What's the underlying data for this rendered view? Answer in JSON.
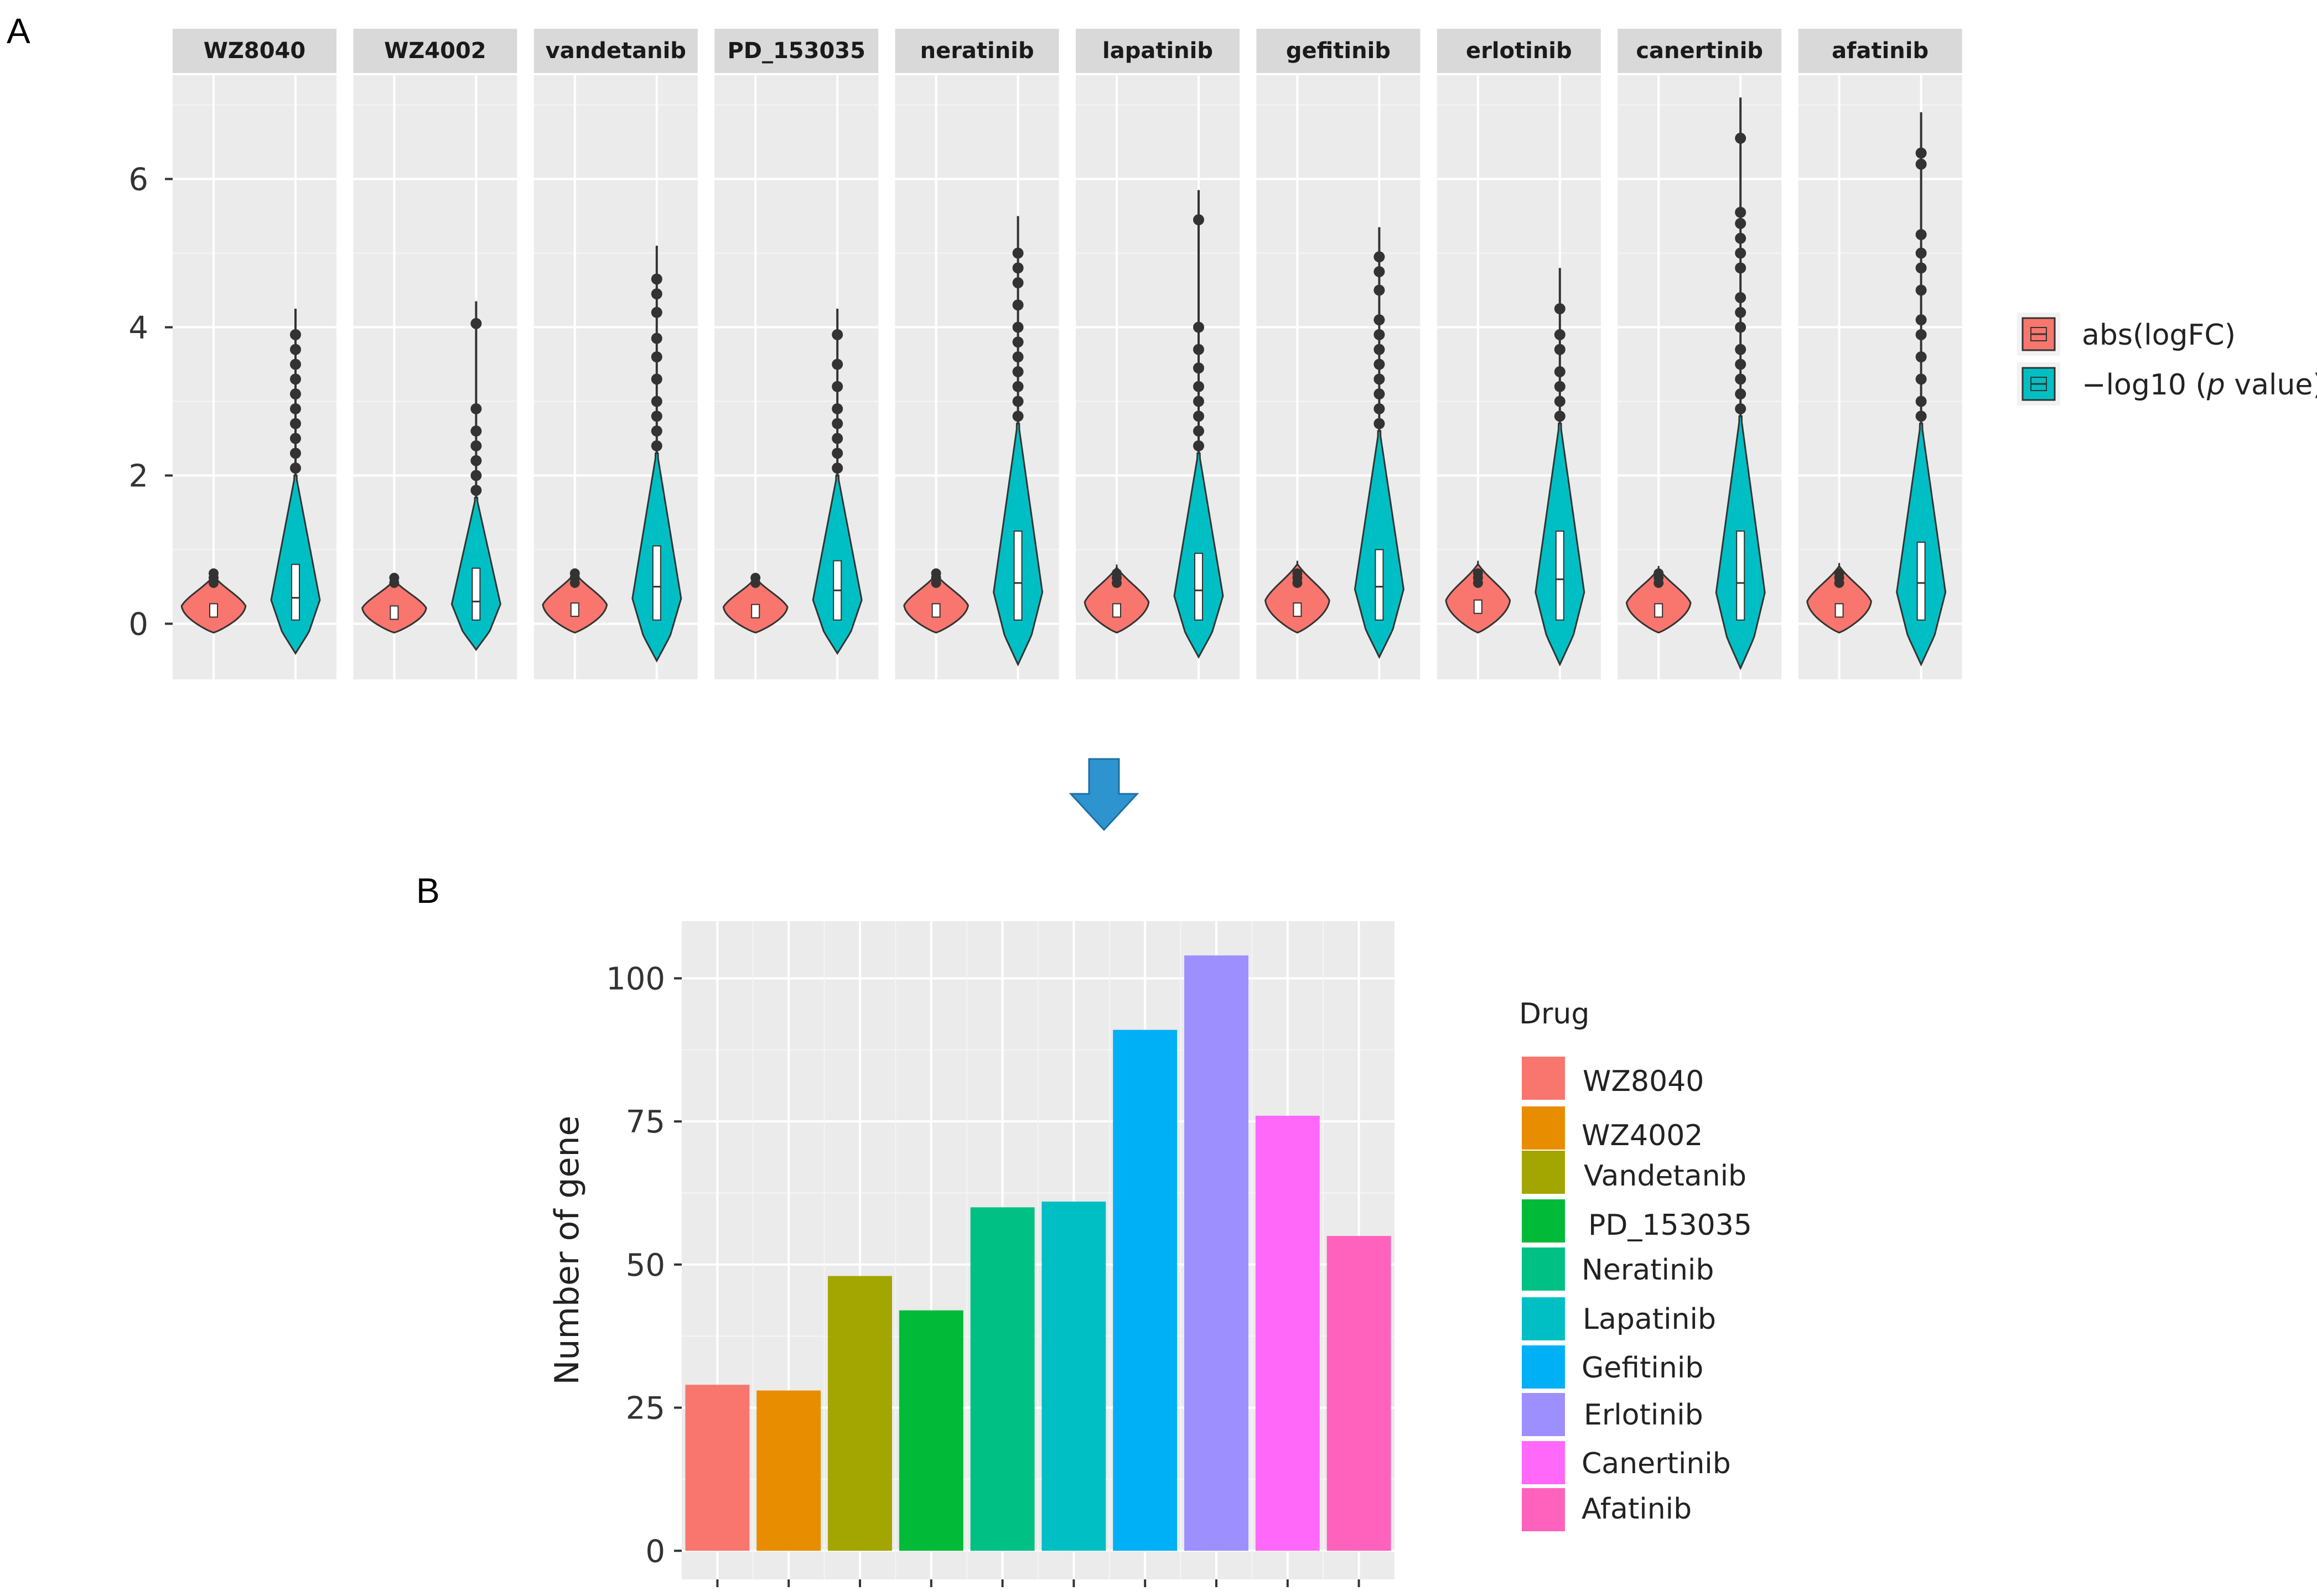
{
  "chart_data": [
    {
      "panel": "A",
      "type": "violin",
      "ylim": [
        -0.75,
        7.4
      ],
      "yticks": [
        0,
        2,
        4,
        6
      ],
      "ytick_labels": [
        "0",
        "2",
        "4",
        "6"
      ],
      "legend": {
        "position": "right",
        "entries": [
          {
            "label": "abs(logFC)",
            "color": "#F8766D"
          },
          {
            "label_prefix": "−log10 (",
            "label_italic": "p",
            "label_suffix": " value)",
            "color": "#00BFC4"
          }
        ]
      },
      "facets": [
        {
          "name": "WZ8040",
          "abs_max": 0.68,
          "abs_med": 0.15,
          "p_min": -0.4,
          "p_max": 4.25,
          "p_med": 0.35,
          "p_q3": 0.8,
          "p_tail": 2.0,
          "p_outliers": [
            2.1,
            2.3,
            2.5,
            2.7,
            2.9,
            3.1,
            3.3,
            3.5,
            3.7,
            3.9
          ]
        },
        {
          "name": "WZ4002",
          "abs_max": 0.62,
          "abs_med": 0.12,
          "p_min": -0.35,
          "p_max": 4.35,
          "p_med": 0.3,
          "p_q3": 0.75,
          "p_tail": 1.7,
          "p_outliers": [
            1.8,
            2.0,
            2.2,
            2.4,
            2.6,
            2.9,
            4.05
          ]
        },
        {
          "name": "vandetanib",
          "abs_max": 0.72,
          "abs_med": 0.16,
          "p_min": -0.5,
          "p_max": 5.1,
          "p_med": 0.5,
          "p_q3": 1.05,
          "p_tail": 2.3,
          "p_outliers": [
            2.4,
            2.6,
            2.8,
            3.0,
            3.3,
            3.6,
            3.85,
            4.2,
            4.45,
            4.65
          ]
        },
        {
          "name": "PD_153035",
          "abs_max": 0.65,
          "abs_med": 0.14,
          "p_min": -0.4,
          "p_max": 4.25,
          "p_med": 0.45,
          "p_q3": 0.85,
          "p_tail": 2.0,
          "p_outliers": [
            2.1,
            2.3,
            2.5,
            2.7,
            2.9,
            3.2,
            3.5,
            3.9
          ]
        },
        {
          "name": "neratinib",
          "abs_max": 0.7,
          "abs_med": 0.15,
          "p_min": -0.55,
          "p_max": 5.5,
          "p_med": 0.55,
          "p_q3": 1.25,
          "p_tail": 2.7,
          "p_outliers": [
            2.8,
            3.0,
            3.2,
            3.4,
            3.6,
            3.8,
            4.0,
            4.3,
            4.6,
            4.8,
            5.0
          ]
        },
        {
          "name": "lapatinib",
          "abs_max": 0.8,
          "abs_med": 0.15,
          "p_min": -0.45,
          "p_max": 5.85,
          "p_med": 0.45,
          "p_q3": 0.95,
          "p_tail": 2.3,
          "p_outliers": [
            2.4,
            2.6,
            2.8,
            3.0,
            3.2,
            3.45,
            3.7,
            4.0,
            5.45
          ]
        },
        {
          "name": "gefitinib",
          "abs_max": 0.85,
          "abs_med": 0.16,
          "p_min": -0.45,
          "p_max": 5.35,
          "p_med": 0.5,
          "p_q3": 1.0,
          "p_tail": 2.6,
          "p_outliers": [
            2.7,
            2.9,
            3.1,
            3.3,
            3.5,
            3.7,
            3.9,
            4.1,
            4.5,
            4.75,
            4.95
          ]
        },
        {
          "name": "erlotinib",
          "abs_max": 0.85,
          "abs_med": 0.2,
          "p_min": -0.55,
          "p_max": 4.8,
          "p_med": 0.6,
          "p_q3": 1.25,
          "p_tail": 2.7,
          "p_outliers": [
            2.8,
            3.0,
            3.2,
            3.4,
            3.7,
            3.9,
            4.25
          ]
        },
        {
          "name": "canertinib",
          "abs_max": 0.78,
          "abs_med": 0.15,
          "p_min": -0.6,
          "p_max": 7.1,
          "p_med": 0.55,
          "p_q3": 1.25,
          "p_tail": 2.8,
          "p_outliers": [
            2.9,
            3.1,
            3.3,
            3.5,
            3.7,
            4.0,
            4.2,
            4.4,
            4.8,
            5.0,
            5.2,
            5.4,
            5.55,
            6.55
          ]
        },
        {
          "name": "afatinib",
          "abs_max": 0.82,
          "abs_med": 0.15,
          "p_min": -0.55,
          "p_max": 6.9,
          "p_med": 0.55,
          "p_q3": 1.1,
          "p_tail": 2.7,
          "p_outliers": [
            2.8,
            3.0,
            3.3,
            3.6,
            3.9,
            4.1,
            4.5,
            4.8,
            5.0,
            5.25,
            6.2,
            6.35
          ]
        }
      ]
    },
    {
      "panel": "B",
      "type": "bar",
      "ylabel": "Number of gene",
      "ylim": [
        -5,
        110
      ],
      "yticks": [
        0,
        25,
        50,
        75,
        100
      ],
      "ytick_labels": [
        "0",
        "25",
        "50",
        "75",
        "100"
      ],
      "legend_title": "Drug",
      "legend_position": "right",
      "categories": [
        "WZ8040",
        "WZ4002",
        "Vandetanib",
        "PD_153035",
        "Neratinib",
        "Lapatinib",
        "Gefitinib",
        "Erlotinib",
        "Canertinib",
        "Afatinib"
      ],
      "values": [
        29,
        28,
        48,
        42,
        60,
        61,
        91,
        104,
        76,
        55
      ],
      "colors": [
        "#F8766D",
        "#E88D00",
        "#A3A500",
        "#00BA38",
        "#00C084",
        "#00BFC4",
        "#00B0F6",
        "#9E8FFF",
        "#FF68F8",
        "#FF62BC"
      ]
    }
  ]
}
